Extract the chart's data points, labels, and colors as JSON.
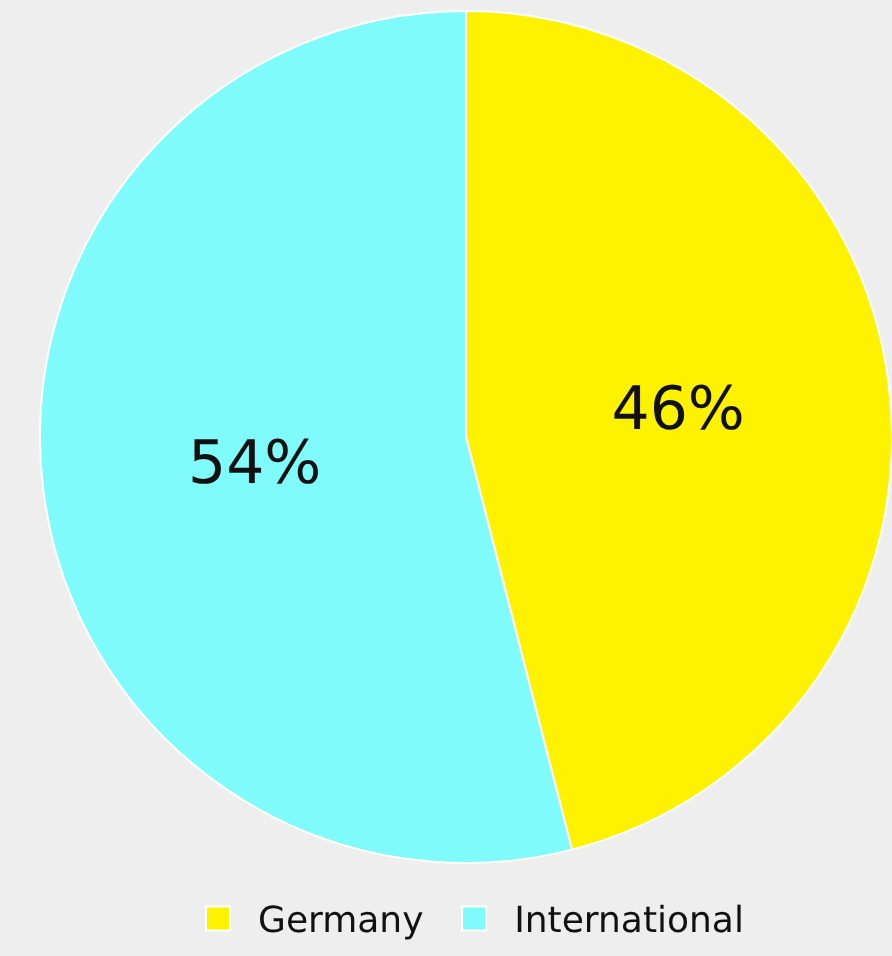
{
  "chart_data": {
    "type": "pie",
    "categories": [
      "Germany",
      "International"
    ],
    "values": [
      46,
      54
    ],
    "colors": [
      "#fff200",
      "#7ffbfb"
    ],
    "value_labels": [
      "46%",
      "54%"
    ],
    "legend": "bottom"
  }
}
